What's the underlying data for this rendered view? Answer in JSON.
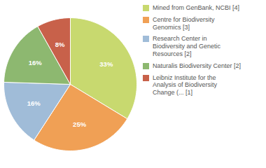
{
  "chart_data": {
    "type": "pie",
    "categories": [
      "Mined from GenBank, NCBI [4]",
      "Centre for Biodiversity\nGenomics [3]",
      "Research Center in\nBiodiversity and Genetic\nResources [2]",
      "Naturalis Biodiversity Center [2]",
      "Leibniz Institute for the\nAnalysis of Biodiversity\nChange (... [1]"
    ],
    "values": [
      33,
      25,
      16,
      16,
      8
    ],
    "value_labels": [
      "33%",
      "25%",
      "16%",
      "16%",
      "8%"
    ],
    "colors": [
      "#c8d96f",
      "#f0a055",
      "#a0bcd8",
      "#8db870",
      "#c8614a"
    ],
    "data_labels": true,
    "legend": "right"
  }
}
